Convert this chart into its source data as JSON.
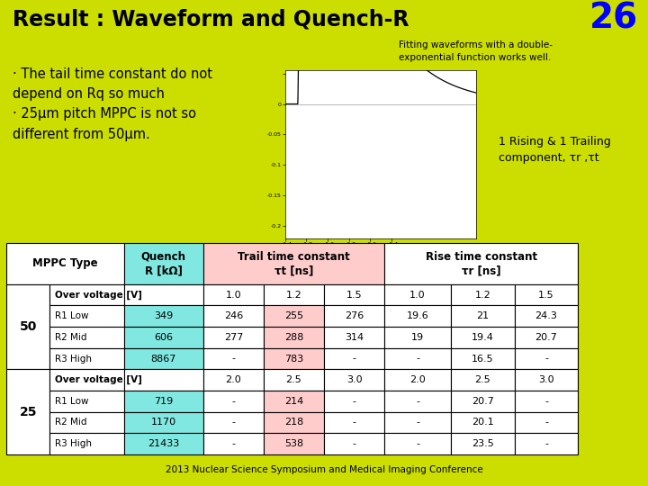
{
  "title": "Result : Waveform and Quench-R",
  "slide_number": "26",
  "subtitle": "Fitting waveforms with a double-\nexponential function works well.",
  "bullet1": "· The tail time constant do not\ndepend on Rq so much\n· 25μm pitch MPPC is not so\ndifferent from 50μm.",
  "annotation": "1 Rising & 1 Trailing\ncomponent, τr ,τt",
  "footer": "2013 Nuclear Science Symposium and Medical Imaging Conference",
  "bg_color": "#ccdd00",
  "header_text_color": "#000000",
  "slide_num_color": "#0000ff",
  "table_header_bg1": "#80e8e0",
  "table_header_bg2": "#ffcccc",
  "table_body_bg": "#ffffff",
  "rows": [
    {
      "group": "50",
      "label": "Over voltage [V]",
      "quench": "",
      "t1": "1.0",
      "t2": "1.2",
      "t3": "1.5",
      "r1": "1.0",
      "r2": "1.2",
      "r3": "1.5"
    },
    {
      "group": "50",
      "label": "R1 Low",
      "quench": "349",
      "t1": "246",
      "t2": "255",
      "t3": "276",
      "r1": "19.6",
      "r2": "21",
      "r3": "24.3"
    },
    {
      "group": "50",
      "label": "R2 Mid",
      "quench": "606",
      "t1": "277",
      "t2": "288",
      "t3": "314",
      "r1": "19",
      "r2": "19.4",
      "r3": "20.7"
    },
    {
      "group": "50",
      "label": "R3 High",
      "quench": "8867",
      "t1": "-",
      "t2": "783",
      "t3": "-",
      "r1": "-",
      "r2": "16.5",
      "r3": "-"
    },
    {
      "group": "25",
      "label": "Over voltage [V]",
      "quench": "",
      "t1": "2.0",
      "t2": "2.5",
      "t3": "3.0",
      "r1": "2.0",
      "r2": "2.5",
      "r3": "3.0"
    },
    {
      "group": "25",
      "label": "R1 Low",
      "quench": "719",
      "t1": "-",
      "t2": "214",
      "t3": "-",
      "r1": "-",
      "r2": "20.7",
      "r3": "-"
    },
    {
      "group": "25",
      "label": "R2 Mid",
      "quench": "1170",
      "t1": "-",
      "t2": "218",
      "t3": "-",
      "r1": "-",
      "r2": "20.1",
      "r3": "-"
    },
    {
      "group": "25",
      "label": "R3 High",
      "quench": "21433",
      "t1": "-",
      "t2": "538",
      "t3": "-",
      "r1": "-",
      "r2": "23.5",
      "r3": "-"
    }
  ]
}
